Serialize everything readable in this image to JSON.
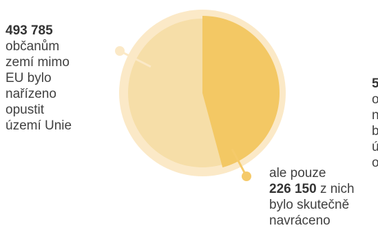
{
  "chart_data": {
    "type": "pie",
    "total_label": "493 785",
    "total_value": 493785,
    "part_label": "226 150",
    "part_value": 226150,
    "colors": {
      "outer": "#fbe9c7",
      "inner": "#f6dea8",
      "wedge": "#f3c864",
      "wedge_edge": "#f0bf55",
      "connector": "#f5ca6a"
    }
  },
  "left_text": {
    "number": "493 785",
    "lines": [
      "občanům",
      "zemí mimo",
      "EU bylo",
      "nařízeno",
      "opustit",
      "území Unie"
    ]
  },
  "bottom_text": {
    "line1": "ale pouze",
    "number": "226 150",
    "line2_rest": " z nich",
    "line3": "bylo skutečně",
    "line4": "navráceno"
  },
  "right_text": {
    "number": "5",
    "lines": [
      "o",
      "n",
      "b",
      "ú",
      "o"
    ]
  }
}
